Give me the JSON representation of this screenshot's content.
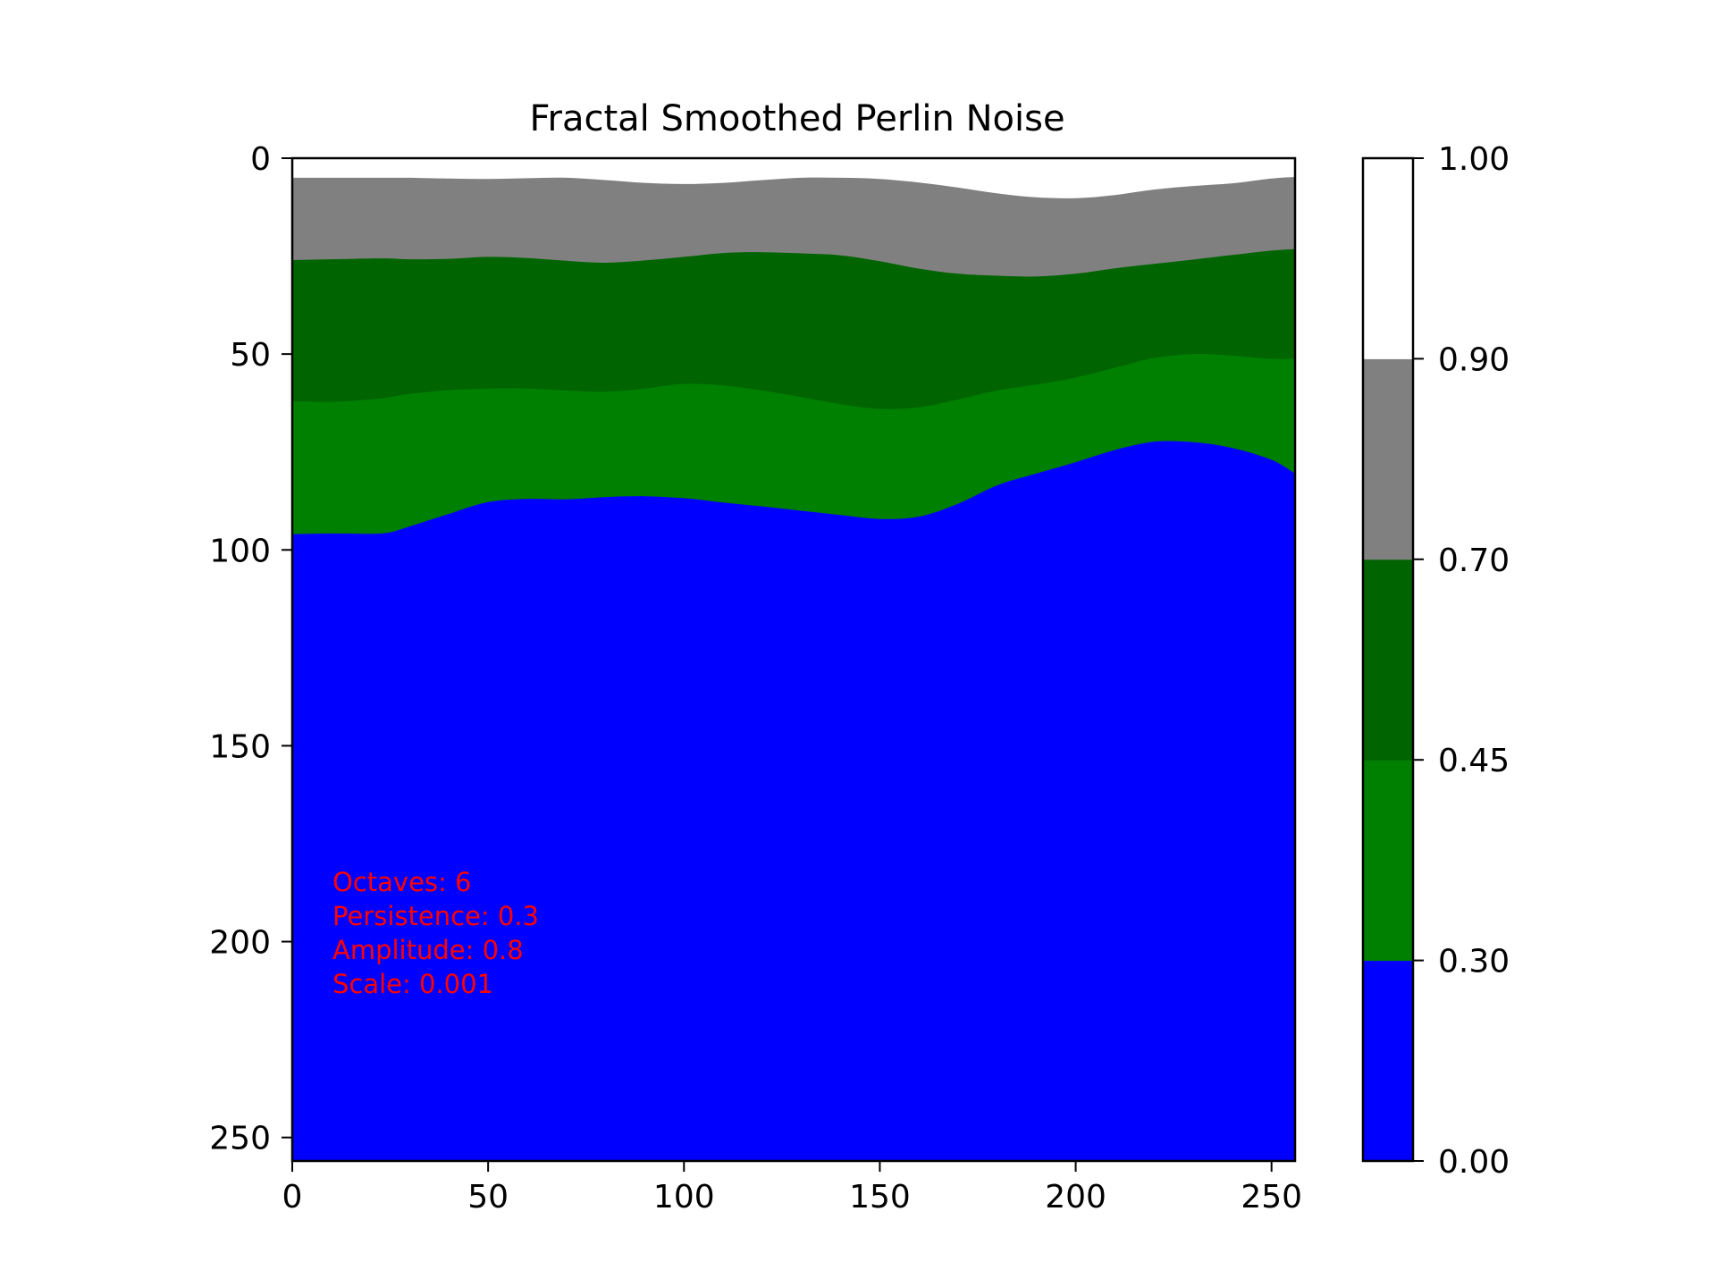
{
  "chart_data": {
    "type": "heatmap",
    "title": "Fractal Smoothed Perlin Noise",
    "xlabel": "",
    "ylabel": "",
    "xlim": [
      0,
      256
    ],
    "ylim": [
      256,
      0
    ],
    "x_ticks": [
      0,
      50,
      100,
      150,
      200,
      250
    ],
    "y_ticks": [
      0,
      50,
      100,
      150,
      200,
      250
    ],
    "colorbar": {
      "boundaries": [
        0.0,
        0.3,
        0.45,
        0.7,
        0.9,
        1.0
      ],
      "tick_labels": [
        "0.00",
        "0.30",
        "0.45",
        "0.70",
        "0.90",
        "1.00"
      ],
      "colors": [
        "#0000ff",
        "#008000",
        "#006400",
        "#808080",
        "#ffffff"
      ]
    },
    "contour_x": [
      0,
      10,
      20,
      25,
      30,
      40,
      50,
      60,
      70,
      80,
      90,
      100,
      110,
      120,
      130,
      140,
      150,
      160,
      170,
      180,
      190,
      200,
      210,
      220,
      230,
      240,
      250,
      256
    ],
    "contours": [
      {
        "level": 0.9,
        "y": [
          5,
          5,
          5,
          5,
          5,
          5.2,
          5.3,
          5.1,
          5,
          5.6,
          6.3,
          6.6,
          6.3,
          5.6,
          5,
          5,
          5.3,
          6.2,
          7.5,
          9,
          10,
          10.2,
          9.4,
          8,
          7.1,
          6.4,
          5.2,
          4.8
        ]
      },
      {
        "level": 0.7,
        "y": [
          26,
          25.8,
          25.6,
          25.6,
          25.8,
          25.7,
          25.2,
          25.5,
          26.2,
          26.7,
          26.1,
          25.2,
          24.2,
          24,
          24.3,
          24.8,
          26.3,
          28.2,
          29.5,
          30,
          30.2,
          29.5,
          28.1,
          27,
          25.9,
          24.7,
          23.6,
          23.2
        ]
      },
      {
        "level": 0.45,
        "y": [
          62,
          62.2,
          61.6,
          61,
          60.2,
          59.2,
          58.8,
          58.8,
          59.3,
          59.6,
          58.8,
          57.6,
          58,
          59.3,
          61,
          62.8,
          64,
          63.6,
          61.6,
          59.3,
          57.8,
          56,
          53.5,
          51,
          50,
          50.4,
          51.2,
          51.2
        ]
      },
      {
        "level": 0.3,
        "y": [
          96,
          95.8,
          95.9,
          95.5,
          94,
          90.8,
          87.8,
          87,
          87.1,
          86.5,
          86.3,
          86.8,
          87.9,
          88.9,
          90,
          91.1,
          92.1,
          91.5,
          88.2,
          83.5,
          80.5,
          77.6,
          74.5,
          72.4,
          72.5,
          74,
          77,
          80.5
        ]
      }
    ],
    "annotations": [
      "Octaves: 6",
      "Persistence: 0.3",
      "Amplitude: 0.8",
      "Scale: 0.001"
    ],
    "annotation_color": "#ff0000"
  }
}
